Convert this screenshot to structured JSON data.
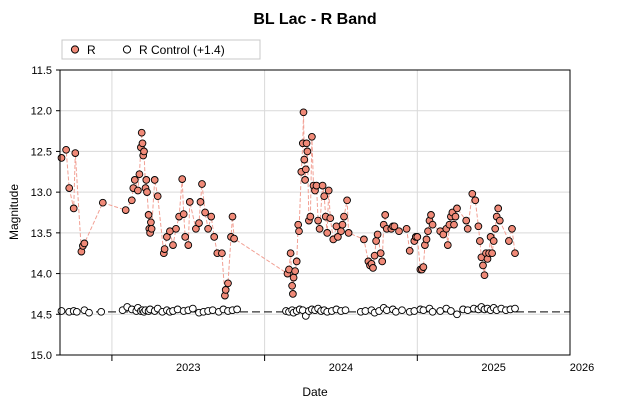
{
  "colors": {
    "r_fill": "#f08a78",
    "r_line": "#f2a094",
    "marker_edge": "#000000",
    "control_fill": "#ffffff",
    "grid": "#d9d9d9",
    "axis": "#000000"
  },
  "chart_data": {
    "type": "scatter",
    "title": "BL Lac - R Band",
    "xlabel": "Date",
    "ylabel": "Magnitude",
    "legend_position": "top-left",
    "grid": true,
    "x_unit": "year",
    "xlim": [
      2022.66,
      2026.0
    ],
    "ylim": [
      15.0,
      11.5
    ],
    "y_inverted": true,
    "xticks": [
      "2023",
      "2024",
      "2025",
      "2026"
    ],
    "yticks": [
      "11.5",
      "12.0",
      "12.5",
      "13.0",
      "13.5",
      "14.0",
      "14.5",
      "15.0"
    ],
    "series": [
      {
        "name": "R",
        "marker": "filled-circle",
        "connected": true,
        "points": [
          [
            2022.67,
            12.58
          ],
          [
            2022.7,
            12.48
          ],
          [
            2022.72,
            12.95
          ],
          [
            2022.75,
            13.2
          ],
          [
            2022.76,
            12.52
          ],
          [
            2022.8,
            13.73
          ],
          [
            2022.81,
            13.66
          ],
          [
            2022.82,
            13.63
          ],
          [
            2022.94,
            13.13
          ],
          [
            2023.09,
            13.22
          ],
          [
            2023.13,
            13.1
          ],
          [
            2023.14,
            12.95
          ],
          [
            2023.15,
            12.85
          ],
          [
            2023.17,
            12.98
          ],
          [
            2023.18,
            12.78
          ],
          [
            2023.19,
            12.45
          ],
          [
            2023.195,
            12.27
          ],
          [
            2023.2,
            12.4
          ],
          [
            2023.205,
            12.55
          ],
          [
            2023.21,
            12.5
          ],
          [
            2023.22,
            12.95
          ],
          [
            2023.225,
            12.85
          ],
          [
            2023.23,
            13.0
          ],
          [
            2023.24,
            13.28
          ],
          [
            2023.245,
            13.45
          ],
          [
            2023.25,
            13.5
          ],
          [
            2023.255,
            13.37
          ],
          [
            2023.26,
            13.45
          ],
          [
            2023.28,
            12.85
          ],
          [
            2023.3,
            13.05
          ],
          [
            2023.34,
            13.75
          ],
          [
            2023.345,
            13.7
          ],
          [
            2023.36,
            13.55
          ],
          [
            2023.38,
            13.48
          ],
          [
            2023.4,
            13.65
          ],
          [
            2023.42,
            13.45
          ],
          [
            2023.44,
            13.3
          ],
          [
            2023.46,
            12.84
          ],
          [
            2023.47,
            13.27
          ],
          [
            2023.48,
            13.55
          ],
          [
            2023.5,
            13.65
          ],
          [
            2023.51,
            13.12
          ],
          [
            2023.55,
            13.45
          ],
          [
            2023.57,
            13.38
          ],
          [
            2023.58,
            13.12
          ],
          [
            2023.59,
            12.9
          ],
          [
            2023.61,
            13.25
          ],
          [
            2023.63,
            13.45
          ],
          [
            2023.65,
            13.3
          ],
          [
            2023.67,
            13.55
          ],
          [
            2023.69,
            13.75
          ],
          [
            2023.72,
            13.75
          ],
          [
            2023.74,
            14.27
          ],
          [
            2023.745,
            14.2
          ],
          [
            2023.76,
            14.12
          ],
          [
            2023.78,
            13.55
          ],
          [
            2023.79,
            13.3
          ],
          [
            2023.8,
            13.57
          ],
          [
            2024.15,
            14.0
          ],
          [
            2024.16,
            13.95
          ],
          [
            2024.17,
            13.75
          ],
          [
            2024.18,
            14.15
          ],
          [
            2024.185,
            14.25
          ],
          [
            2024.19,
            14.05
          ],
          [
            2024.2,
            13.97
          ],
          [
            2024.21,
            13.85
          ],
          [
            2024.22,
            13.4
          ],
          [
            2024.225,
            13.48
          ],
          [
            2024.24,
            12.75
          ],
          [
            2024.25,
            12.4
          ],
          [
            2024.255,
            12.02
          ],
          [
            2024.26,
            12.6
          ],
          [
            2024.265,
            12.85
          ],
          [
            2024.27,
            12.72
          ],
          [
            2024.275,
            12.4
          ],
          [
            2024.28,
            12.5
          ],
          [
            2024.29,
            13.35
          ],
          [
            2024.3,
            13.3
          ],
          [
            2024.31,
            12.32
          ],
          [
            2024.32,
            12.92
          ],
          [
            2024.33,
            12.98
          ],
          [
            2024.34,
            12.92
          ],
          [
            2024.35,
            13.35
          ],
          [
            2024.36,
            13.45
          ],
          [
            2024.38,
            12.92
          ],
          [
            2024.39,
            13.05
          ],
          [
            2024.4,
            13.3
          ],
          [
            2024.41,
            13.5
          ],
          [
            2024.42,
            12.98
          ],
          [
            2024.43,
            13.32
          ],
          [
            2024.45,
            13.58
          ],
          [
            2024.47,
            13.42
          ],
          [
            2024.48,
            13.55
          ],
          [
            2024.5,
            13.48
          ],
          [
            2024.51,
            13.4
          ],
          [
            2024.52,
            13.3
          ],
          [
            2024.54,
            13.1
          ],
          [
            2024.55,
            13.5
          ],
          [
            2024.65,
            13.58
          ],
          [
            2024.68,
            13.85
          ],
          [
            2024.69,
            13.9
          ],
          [
            2024.7,
            13.88
          ],
          [
            2024.71,
            13.93
          ],
          [
            2024.72,
            13.78
          ],
          [
            2024.73,
            13.6
          ],
          [
            2024.74,
            13.52
          ],
          [
            2024.76,
            13.75
          ],
          [
            2024.77,
            13.85
          ],
          [
            2024.78,
            13.4
          ],
          [
            2024.79,
            13.28
          ],
          [
            2024.8,
            13.45
          ],
          [
            2024.83,
            13.45
          ],
          [
            2024.84,
            13.42
          ],
          [
            2024.85,
            13.42
          ],
          [
            2024.88,
            13.48
          ],
          [
            2024.93,
            13.45
          ],
          [
            2024.95,
            13.72
          ],
          [
            2024.98,
            13.6
          ],
          [
            2024.99,
            13.55
          ],
          [
            2025.0,
            13.55
          ],
          [
            2025.02,
            13.95
          ],
          [
            2025.03,
            13.95
          ],
          [
            2025.04,
            13.92
          ],
          [
            2025.05,
            13.65
          ],
          [
            2025.06,
            13.58
          ],
          [
            2025.07,
            13.48
          ],
          [
            2025.08,
            13.35
          ],
          [
            2025.09,
            13.28
          ],
          [
            2025.1,
            13.4
          ],
          [
            2025.15,
            13.48
          ],
          [
            2025.17,
            13.52
          ],
          [
            2025.19,
            13.45
          ],
          [
            2025.2,
            13.65
          ],
          [
            2025.21,
            13.4
          ],
          [
            2025.22,
            13.3
          ],
          [
            2025.23,
            13.25
          ],
          [
            2025.24,
            13.4
          ],
          [
            2025.25,
            13.3
          ],
          [
            2025.26,
            13.2
          ],
          [
            2025.32,
            13.35
          ],
          [
            2025.33,
            13.45
          ],
          [
            2025.36,
            13.02
          ],
          [
            2025.38,
            13.1
          ],
          [
            2025.4,
            13.42
          ],
          [
            2025.41,
            13.6
          ],
          [
            2025.42,
            13.8
          ],
          [
            2025.43,
            13.9
          ],
          [
            2025.44,
            14.02
          ],
          [
            2025.45,
            13.75
          ],
          [
            2025.46,
            13.82
          ],
          [
            2025.47,
            13.75
          ],
          [
            2025.48,
            13.55
          ],
          [
            2025.49,
            13.75
          ],
          [
            2025.5,
            13.6
          ],
          [
            2025.51,
            13.45
          ],
          [
            2025.52,
            13.3
          ],
          [
            2025.53,
            13.2
          ],
          [
            2025.54,
            13.35
          ],
          [
            2025.6,
            13.6
          ],
          [
            2025.62,
            13.45
          ],
          [
            2025.64,
            13.75
          ]
        ]
      },
      {
        "name": "R Control (+1.4)",
        "marker": "open-circle",
        "connected": false,
        "trend": 14.47,
        "points": [
          [
            2022.67,
            14.46
          ],
          [
            2022.72,
            14.47
          ],
          [
            2022.75,
            14.46
          ],
          [
            2022.77,
            14.47
          ],
          [
            2022.82,
            14.45
          ],
          [
            2022.85,
            14.48
          ],
          [
            2022.93,
            14.47
          ],
          [
            2023.07,
            14.45
          ],
          [
            2023.1,
            14.41
          ],
          [
            2023.13,
            14.44
          ],
          [
            2023.16,
            14.46
          ],
          [
            2023.17,
            14.42
          ],
          [
            2023.19,
            14.46
          ],
          [
            2023.2,
            14.45
          ],
          [
            2023.21,
            14.47
          ],
          [
            2023.22,
            14.45
          ],
          [
            2023.24,
            14.46
          ],
          [
            2023.25,
            14.44
          ],
          [
            2023.28,
            14.46
          ],
          [
            2023.3,
            14.43
          ],
          [
            2023.33,
            14.47
          ],
          [
            2023.36,
            14.45
          ],
          [
            2023.38,
            14.47
          ],
          [
            2023.4,
            14.46
          ],
          [
            2023.43,
            14.44
          ],
          [
            2023.47,
            14.46
          ],
          [
            2023.5,
            14.45
          ],
          [
            2023.53,
            14.43
          ],
          [
            2023.57,
            14.48
          ],
          [
            2023.6,
            14.47
          ],
          [
            2023.63,
            14.46
          ],
          [
            2023.66,
            14.45
          ],
          [
            2023.7,
            14.47
          ],
          [
            2023.73,
            14.44
          ],
          [
            2023.76,
            14.46
          ],
          [
            2023.79,
            14.45
          ],
          [
            2023.82,
            14.44
          ],
          [
            2024.14,
            14.46
          ],
          [
            2024.16,
            14.47
          ],
          [
            2024.18,
            14.45
          ],
          [
            2024.19,
            14.48
          ],
          [
            2024.21,
            14.46
          ],
          [
            2024.23,
            14.44
          ],
          [
            2024.25,
            14.45
          ],
          [
            2024.27,
            14.52
          ],
          [
            2024.29,
            14.46
          ],
          [
            2024.31,
            14.44
          ],
          [
            2024.33,
            14.45
          ],
          [
            2024.35,
            14.43
          ],
          [
            2024.37,
            14.46
          ],
          [
            2024.39,
            14.45
          ],
          [
            2024.41,
            14.47
          ],
          [
            2024.44,
            14.46
          ],
          [
            2024.47,
            14.44
          ],
          [
            2024.5,
            14.46
          ],
          [
            2024.53,
            14.45
          ],
          [
            2024.63,
            14.47
          ],
          [
            2024.66,
            14.46
          ],
          [
            2024.7,
            14.45
          ],
          [
            2024.72,
            14.48
          ],
          [
            2024.75,
            14.46
          ],
          [
            2024.78,
            14.42
          ],
          [
            2024.8,
            14.45
          ],
          [
            2024.84,
            14.44
          ],
          [
            2024.86,
            14.47
          ],
          [
            2024.9,
            14.45
          ],
          [
            2024.95,
            14.47
          ],
          [
            2024.98,
            14.46
          ],
          [
            2025.02,
            14.44
          ],
          [
            2025.04,
            14.45
          ],
          [
            2025.08,
            14.43
          ],
          [
            2025.1,
            14.47
          ],
          [
            2025.15,
            14.46
          ],
          [
            2025.19,
            14.43
          ],
          [
            2025.22,
            14.46
          ],
          [
            2025.26,
            14.5
          ],
          [
            2025.3,
            14.44
          ],
          [
            2025.33,
            14.45
          ],
          [
            2025.37,
            14.43
          ],
          [
            2025.4,
            14.44
          ],
          [
            2025.42,
            14.41
          ],
          [
            2025.44,
            14.44
          ],
          [
            2025.46,
            14.43
          ],
          [
            2025.48,
            14.45
          ],
          [
            2025.5,
            14.42
          ],
          [
            2025.52,
            14.45
          ],
          [
            2025.55,
            14.43
          ],
          [
            2025.58,
            14.45
          ],
          [
            2025.61,
            14.44
          ],
          [
            2025.64,
            14.43
          ]
        ]
      }
    ]
  }
}
